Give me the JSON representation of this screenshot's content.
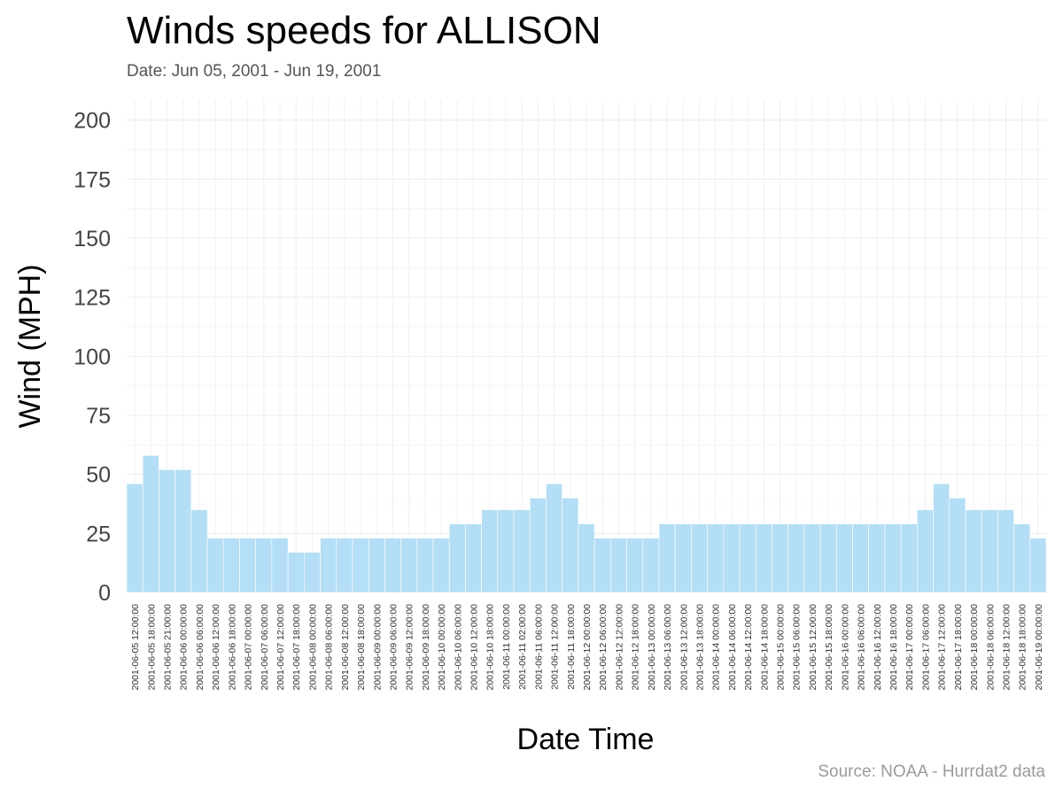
{
  "title": "Winds speeds for ALLISON",
  "subtitle": "Date:  Jun 05, 2001 - Jun 19, 2001",
  "caption": "Source: NOAA - Hurrdat2 data",
  "chart_data": {
    "type": "bar",
    "title": "Winds speeds for ALLISON",
    "xlabel": "Date Time",
    "ylabel": "Wind (MPH)",
    "ylim": [
      0,
      200
    ],
    "yticks": [
      0,
      25,
      50,
      75,
      100,
      125,
      150,
      175,
      200
    ],
    "grid": true,
    "bar_color": "#b3def5",
    "categories": [
      "2001-06-05 12:00:00",
      "2001-06-05 18:00:00",
      "2001-06-05 21:00:00",
      "2001-06-06 00:00:00",
      "2001-06-06 06:00:00",
      "2001-06-06 12:00:00",
      "2001-06-06 18:00:00",
      "2001-06-07 00:00:00",
      "2001-06-07 06:00:00",
      "2001-06-07 12:00:00",
      "2001-06-07 18:00:00",
      "2001-06-08 00:00:00",
      "2001-06-08 06:00:00",
      "2001-06-08 12:00:00",
      "2001-06-08 18:00:00",
      "2001-06-09 00:00:00",
      "2001-06-09 06:00:00",
      "2001-06-09 12:00:00",
      "2001-06-09 18:00:00",
      "2001-06-10 00:00:00",
      "2001-06-10 06:00:00",
      "2001-06-10 12:00:00",
      "2001-06-10 18:00:00",
      "2001-06-11 00:00:00",
      "2001-06-11 02:00:00",
      "2001-06-11 06:00:00",
      "2001-06-11 12:00:00",
      "2001-06-11 18:00:00",
      "2001-06-12 00:00:00",
      "2001-06-12 06:00:00",
      "2001-06-12 12:00:00",
      "2001-06-12 18:00:00",
      "2001-06-13 00:00:00",
      "2001-06-13 06:00:00",
      "2001-06-13 12:00:00",
      "2001-06-13 18:00:00",
      "2001-06-14 00:00:00",
      "2001-06-14 06:00:00",
      "2001-06-14 12:00:00",
      "2001-06-14 18:00:00",
      "2001-06-15 00:00:00",
      "2001-06-15 06:00:00",
      "2001-06-15 12:00:00",
      "2001-06-15 18:00:00",
      "2001-06-16 00:00:00",
      "2001-06-16 06:00:00",
      "2001-06-16 12:00:00",
      "2001-06-16 18:00:00",
      "2001-06-17 00:00:00",
      "2001-06-17 06:00:00",
      "2001-06-17 12:00:00",
      "2001-06-17 18:00:00",
      "2001-06-18 00:00:00",
      "2001-06-18 06:00:00",
      "2001-06-18 12:00:00",
      "2001-06-18 18:00:00",
      "2001-06-19 00:00:00"
    ],
    "values": [
      46,
      58,
      52,
      52,
      35,
      23,
      23,
      23,
      23,
      23,
      17,
      17,
      23,
      23,
      23,
      23,
      23,
      23,
      23,
      23,
      29,
      29,
      35,
      35,
      35,
      40,
      46,
      40,
      29,
      23,
      23,
      23,
      23,
      29,
      29,
      29,
      29,
      29,
      29,
      29,
      29,
      29,
      29,
      29,
      29,
      29,
      29,
      29,
      29,
      35,
      46,
      40,
      35,
      35,
      35,
      29,
      23
    ]
  }
}
